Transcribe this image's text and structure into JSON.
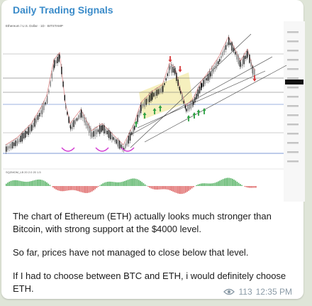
{
  "channel": {
    "name": "Daily Trading Signals"
  },
  "chart": {
    "header_text": "Ethereum / U.S. Dollar · 1D · BITSTAMP",
    "indicator_label": "SQZMOM_LB 20 2.0 20 1.5",
    "colors": {
      "candle_up": "#7c7c7c",
      "candle_down": "#111111",
      "channel": "#444444",
      "level_blue": "#7d9ad4",
      "highlight": "#f2e9a2",
      "up_arrow": "#2ea043",
      "down_arrow": "#d63a3a",
      "ma": "#e08b8b",
      "curve": "#d23bd2"
    }
  },
  "message": {
    "paragraphs": [
      "The chart of Ethereum (ETH) actually looks much stronger than Bitcoin, with strong support at the $4000 level.",
      "So far, prices have not managed to close below that level.",
      "If I had to choose between BTC and ETH, i would definitely choose ETH."
    ]
  },
  "meta": {
    "views": "113",
    "time": "12:35 PM",
    "views_icon": "eye-icon"
  }
}
